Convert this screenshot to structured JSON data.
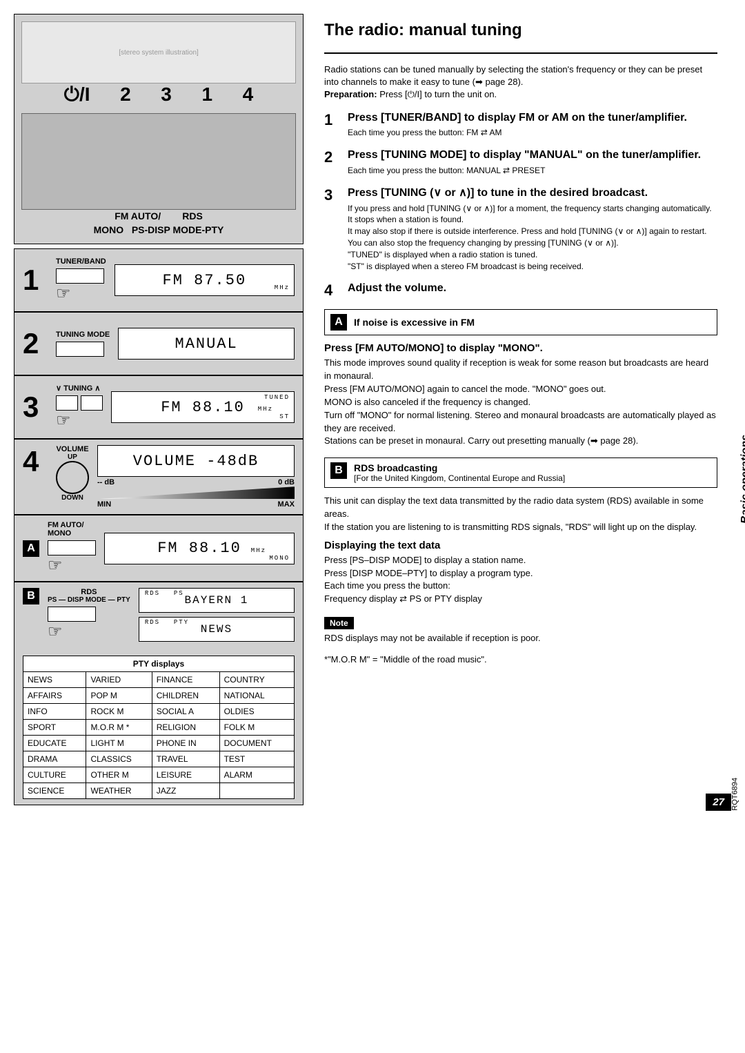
{
  "left": {
    "topNumbers": [
      "2",
      "3",
      "1",
      "4"
    ],
    "powerLabel": "⏻/I",
    "buttonLabels": {
      "line1": "FM AUTO/        RDS",
      "line2": "MONO   PS-DISP MODE-PTY"
    },
    "steps": {
      "s1": {
        "num": "1",
        "label": "TUNER/BAND",
        "lcd": "FM  87.50",
        "unit": "MHz"
      },
      "s2": {
        "num": "2",
        "label": "TUNING MODE",
        "lcd": "MANUAL"
      },
      "s3": {
        "num": "3",
        "label": "∨  TUNING  ∧",
        "lcd": "FM  88.10",
        "indTop": "TUNED",
        "indBot": "ST",
        "unit": "MHz"
      },
      "s4": {
        "num": "4",
        "label": "VOLUME",
        "up": "UP",
        "down": "DOWN",
        "lcd": "VOLUME  -48dB",
        "minDb": "-- dB",
        "minL": "MIN",
        "maxDb": "0 dB",
        "maxL": "MAX"
      },
      "sA": {
        "letter": "A",
        "label": "FM AUTO/\nMONO",
        "lcd": "FM  88.10",
        "ind": "MONO",
        "unit": "MHz"
      },
      "sB": {
        "letter": "B",
        "label": "RDS",
        "label2": "PS — DISP MODE — PTY",
        "lcd1": "BAYERN  1",
        "ind1a": "RDS",
        "ind1b": "PS",
        "lcd2": "NEWS",
        "ind2a": "RDS",
        "ind2b": "PTY"
      }
    },
    "ptyHeader": "PTY displays",
    "ptyRows": [
      [
        "NEWS",
        "VARIED",
        "FINANCE",
        "COUNTRY"
      ],
      [
        "AFFAIRS",
        "POP M",
        "CHILDREN",
        "NATIONAL"
      ],
      [
        "INFO",
        "ROCK M",
        "SOCIAL A",
        "OLDIES"
      ],
      [
        "SPORT",
        "M.O.R M *",
        "RELIGION",
        "FOLK M"
      ],
      [
        "EDUCATE",
        "LIGHT M",
        "PHONE IN",
        "DOCUMENT"
      ],
      [
        "DRAMA",
        "CLASSICS",
        "TRAVEL",
        "TEST"
      ],
      [
        "CULTURE",
        "OTHER M",
        "LEISURE",
        "ALARM"
      ],
      [
        "SCIENCE",
        "WEATHER",
        "JAZZ",
        ""
      ]
    ]
  },
  "right": {
    "title": "The radio: manual tuning",
    "intro": "Radio stations can be tuned manually by selecting the station's frequency or they can be preset into channels to make it easy to tune (➡ page 28).",
    "prepLabel": "Preparation:",
    "prep": " Press [⏻/I] to turn the unit on.",
    "i1": {
      "num": "1",
      "title": "Press [TUNER/BAND] to display FM or AM on the tuner/amplifier.",
      "sub": "Each time you press the button:  FM ⇄ AM"
    },
    "i2": {
      "num": "2",
      "title": "Press [TUNING MODE] to display \"MANUAL\" on the tuner/amplifier.",
      "sub": "Each time you press the button:  MANUAL ⇄ PRESET"
    },
    "i3": {
      "num": "3",
      "title": "Press [TUNING (∨ or ∧)] to tune in the desired broadcast.",
      "sub": "If you press and hold [TUNING (∨ or ∧)] for a moment, the frequency starts changing automatically. It stops when a station is found.\nIt may also stop if there is outside interference. Press and hold [TUNING (∨ or ∧)] again to restart. You can also stop the frequency changing by pressing [TUNING (∨ or ∧)].\n\"TUNED\" is displayed when a radio station is tuned.\n\"ST\" is displayed when a stereo FM broadcast is being received."
    },
    "i4": {
      "num": "4",
      "title": "Adjust the volume."
    },
    "boxA": {
      "letter": "A",
      "title": "If noise is excessive in FM"
    },
    "monoHead": "Press [FM AUTO/MONO] to display \"MONO\".",
    "monoBody": "This mode improves sound quality if reception is weak for some reason but broadcasts are heard in monaural.\nPress [FM AUTO/MONO] again to cancel the mode. \"MONO\" goes out.\nMONO is also canceled if the frequency is changed.\nTurn off \"MONO\" for normal listening. Stereo and monaural broadcasts are automatically played as they are received.\nStations can be preset in monaural. Carry out presetting manually (➡ page 28).",
    "boxB": {
      "letter": "B",
      "title": "RDS broadcasting",
      "sub": "[For the United Kingdom, Continental Europe and Russia]"
    },
    "rdsBody": "This unit can display the text data transmitted by the radio data system (RDS) available in some areas.\nIf the station you are listening to is transmitting RDS signals, \"RDS\" will light up on the display.",
    "dispHead": "Displaying the text data",
    "dispBody": "Press [PS–DISP MODE] to display a station name.\nPress [DISP MODE–PTY] to display a program type.\nEach time you press the button:\nFrequency display ⇄ PS or PTY display",
    "noteLabel": "Note",
    "noteBody": "RDS displays may not be available if reception is poor.",
    "footnote": "*\"M.O.R M\" = \"Middle of the road music\"."
  },
  "sideTab": "Basic operations",
  "sideCode": "RQT6894",
  "pageNum": "27"
}
